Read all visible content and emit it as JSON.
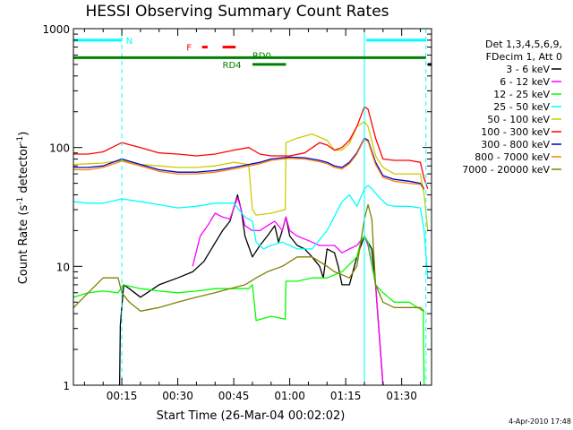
{
  "chart_data": {
    "type": "line",
    "title": "HESSI Observing Summary Count Rates",
    "xlabel": "Start Time (26-Mar-04 00:02:02)",
    "ylabel_parts": [
      "Count Rate (s",
      "-1",
      " detector",
      "-1",
      ")"
    ],
    "y_scale": "log",
    "ylim": [
      1,
      1000
    ],
    "xlim_minutes": [
      2.03,
      98
    ],
    "y_ticks": [
      {
        "value": 1,
        "label": "1"
      },
      {
        "value": 10,
        "label": "10"
      },
      {
        "value": 100,
        "label": "100"
      },
      {
        "value": 1000,
        "label": "1000"
      }
    ],
    "x_ticks": [
      {
        "minute": 15,
        "label": "00:15"
      },
      {
        "minute": 30,
        "label": "00:30"
      },
      {
        "minute": 45,
        "label": "00:45"
      },
      {
        "minute": 60,
        "label": "01:00"
      },
      {
        "minute": 75,
        "label": "01:15"
      },
      {
        "minute": 90,
        "label": "01:30"
      }
    ],
    "legend_header": [
      "Det 1,3,4,5,6,9,",
      "FDecim 1, Att 0"
    ],
    "series": [
      {
        "name": "3 - 6 keV",
        "color": "#000000",
        "points": [
          [
            14.4,
            1
          ],
          [
            14.6,
            3.2
          ],
          [
            15.5,
            7
          ],
          [
            17,
            6.5
          ],
          [
            20,
            5.5
          ],
          [
            25,
            7
          ],
          [
            30,
            8
          ],
          [
            34,
            9
          ],
          [
            37,
            11
          ],
          [
            39,
            14
          ],
          [
            42,
            20
          ],
          [
            44,
            24
          ],
          [
            46,
            40
          ],
          [
            47,
            30
          ],
          [
            48,
            18
          ],
          [
            50,
            12
          ],
          [
            52,
            15
          ],
          [
            54,
            18
          ],
          [
            56,
            22
          ],
          [
            57,
            16
          ],
          [
            58,
            20
          ],
          [
            59,
            26
          ],
          [
            60,
            18
          ],
          [
            62,
            15
          ],
          [
            64,
            14
          ],
          [
            66,
            12
          ],
          [
            68,
            10
          ],
          [
            69,
            8
          ],
          [
            70,
            14
          ],
          [
            72,
            13
          ],
          [
            73,
            10
          ],
          [
            74,
            7
          ],
          [
            76,
            7
          ],
          [
            78,
            12
          ],
          [
            80,
            18
          ],
          [
            82,
            14
          ],
          [
            83,
            7
          ],
          [
            85,
            1
          ]
        ]
      },
      {
        "name": "6 - 12 keV",
        "color": "#ff00ff",
        "points": [
          [
            34,
            10
          ],
          [
            36,
            18
          ],
          [
            38,
            22
          ],
          [
            40,
            28
          ],
          [
            42,
            26
          ],
          [
            44,
            25
          ],
          [
            46,
            38
          ],
          [
            47,
            30
          ],
          [
            48,
            22
          ],
          [
            50,
            20
          ],
          [
            52,
            20
          ],
          [
            54,
            22
          ],
          [
            56,
            24
          ],
          [
            58,
            20
          ],
          [
            59,
            26
          ],
          [
            60,
            20
          ],
          [
            62,
            18
          ],
          [
            64,
            17
          ],
          [
            66,
            16
          ],
          [
            68,
            15
          ],
          [
            70,
            15
          ],
          [
            72,
            15
          ],
          [
            74,
            13
          ],
          [
            76,
            14
          ],
          [
            78,
            15
          ],
          [
            80,
            18
          ],
          [
            81,
            15
          ],
          [
            83,
            7
          ],
          [
            85,
            1
          ]
        ]
      },
      {
        "name": "12 - 25 keV",
        "color": "#00ff00",
        "points": [
          [
            2.1,
            5.5
          ],
          [
            6,
            6
          ],
          [
            10,
            6.2
          ],
          [
            14,
            6
          ],
          [
            15.4,
            7
          ],
          [
            20,
            6.5
          ],
          [
            25,
            6.2
          ],
          [
            30,
            6
          ],
          [
            35,
            6.2
          ],
          [
            40,
            6.5
          ],
          [
            44,
            6.5
          ],
          [
            49,
            6.5
          ],
          [
            50,
            7
          ],
          [
            51,
            3.5
          ],
          [
            55,
            3.8
          ],
          [
            58.8,
            3.6
          ],
          [
            59,
            7.5
          ],
          [
            62,
            7.5
          ],
          [
            66,
            8
          ],
          [
            70,
            8
          ],
          [
            74,
            9
          ],
          [
            78,
            12
          ],
          [
            79,
            16
          ],
          [
            80,
            18
          ],
          [
            81,
            16
          ],
          [
            83,
            7
          ],
          [
            85,
            6
          ],
          [
            88,
            5
          ],
          [
            92,
            5
          ],
          [
            95.8,
            4.2
          ],
          [
            96,
            1
          ]
        ]
      },
      {
        "name": "25 - 50 keV",
        "color": "#00ffff",
        "points": [
          [
            2.1,
            35
          ],
          [
            6,
            34
          ],
          [
            10,
            34
          ],
          [
            15,
            37
          ],
          [
            20,
            35
          ],
          [
            25,
            33
          ],
          [
            30,
            31
          ],
          [
            35,
            32
          ],
          [
            40,
            34
          ],
          [
            45,
            34
          ],
          [
            48,
            26
          ],
          [
            50,
            24
          ],
          [
            51,
            16
          ],
          [
            53,
            14
          ],
          [
            55,
            15
          ],
          [
            58,
            16
          ],
          [
            62,
            14
          ],
          [
            66,
            14
          ],
          [
            70,
            20
          ],
          [
            74,
            35
          ],
          [
            76,
            40
          ],
          [
            78,
            32
          ],
          [
            80,
            45
          ],
          [
            81,
            48
          ],
          [
            82,
            45
          ],
          [
            84,
            38
          ],
          [
            86,
            33
          ],
          [
            88,
            32
          ],
          [
            92,
            32
          ],
          [
            95,
            31
          ],
          [
            96,
            20
          ],
          [
            97,
            8
          ]
        ]
      },
      {
        "name": "50 - 100 keV",
        "color": "#cccc00",
        "points": [
          [
            2.1,
            72
          ],
          [
            6,
            73
          ],
          [
            10,
            74
          ],
          [
            15,
            78
          ],
          [
            20,
            72
          ],
          [
            25,
            70
          ],
          [
            30,
            68
          ],
          [
            35,
            68
          ],
          [
            40,
            70
          ],
          [
            45,
            75
          ],
          [
            49,
            72
          ],
          [
            50,
            30
          ],
          [
            51,
            27
          ],
          [
            55,
            28
          ],
          [
            58.8,
            30
          ],
          [
            59,
            110
          ],
          [
            62,
            120
          ],
          [
            66,
            130
          ],
          [
            70,
            115
          ],
          [
            72,
            95
          ],
          [
            74,
            95
          ],
          [
            76,
            108
          ],
          [
            78,
            150
          ],
          [
            80,
            165
          ],
          [
            81,
            150
          ],
          [
            83,
            85
          ],
          [
            85,
            68
          ],
          [
            88,
            60
          ],
          [
            92,
            60
          ],
          [
            95,
            60
          ],
          [
            96,
            40
          ],
          [
            97,
            20
          ]
        ]
      },
      {
        "name": "100 - 300 keV",
        "color": "#ff0000",
        "points": [
          [
            2.1,
            88
          ],
          [
            6,
            88
          ],
          [
            10,
            92
          ],
          [
            15,
            110
          ],
          [
            20,
            100
          ],
          [
            25,
            90
          ],
          [
            30,
            88
          ],
          [
            35,
            85
          ],
          [
            40,
            88
          ],
          [
            45,
            95
          ],
          [
            49,
            100
          ],
          [
            52,
            88
          ],
          [
            55,
            85
          ],
          [
            58,
            85
          ],
          [
            60,
            85
          ],
          [
            64,
            90
          ],
          [
            68,
            110
          ],
          [
            70,
            105
          ],
          [
            72,
            95
          ],
          [
            74,
            100
          ],
          [
            76,
            115
          ],
          [
            78,
            150
          ],
          [
            80,
            220
          ],
          [
            81,
            210
          ],
          [
            83,
            120
          ],
          [
            85,
            80
          ],
          [
            88,
            78
          ],
          [
            92,
            78
          ],
          [
            95,
            75
          ],
          [
            96,
            55
          ],
          [
            97,
            45
          ]
        ]
      },
      {
        "name": "300 - 800 keV",
        "color": "#0000cc",
        "points": [
          [
            2.1,
            68
          ],
          [
            6,
            68
          ],
          [
            10,
            70
          ],
          [
            15,
            80
          ],
          [
            20,
            72
          ],
          [
            25,
            65
          ],
          [
            30,
            62
          ],
          [
            35,
            62
          ],
          [
            40,
            64
          ],
          [
            45,
            68
          ],
          [
            49,
            72
          ],
          [
            52,
            75
          ],
          [
            55,
            80
          ],
          [
            58,
            82
          ],
          [
            60,
            83
          ],
          [
            64,
            82
          ],
          [
            68,
            78
          ],
          [
            70,
            75
          ],
          [
            72,
            70
          ],
          [
            74,
            68
          ],
          [
            76,
            75
          ],
          [
            78,
            90
          ],
          [
            80,
            120
          ],
          [
            81,
            115
          ],
          [
            83,
            75
          ],
          [
            85,
            58
          ],
          [
            88,
            54
          ],
          [
            92,
            52
          ],
          [
            95,
            50
          ],
          [
            96,
            45
          ]
        ]
      },
      {
        "name": "800 - 7000 keV",
        "color": "#ff8000",
        "points": [
          [
            2.1,
            65
          ],
          [
            6,
            65
          ],
          [
            10,
            68
          ],
          [
            15,
            77
          ],
          [
            20,
            70
          ],
          [
            25,
            63
          ],
          [
            30,
            60
          ],
          [
            35,
            60
          ],
          [
            40,
            62
          ],
          [
            45,
            66
          ],
          [
            49,
            70
          ],
          [
            52,
            73
          ],
          [
            55,
            78
          ],
          [
            58,
            80
          ],
          [
            60,
            81
          ],
          [
            64,
            80
          ],
          [
            68,
            76
          ],
          [
            70,
            73
          ],
          [
            72,
            68
          ],
          [
            74,
            66
          ],
          [
            76,
            73
          ],
          [
            78,
            88
          ],
          [
            80,
            118
          ],
          [
            81,
            112
          ],
          [
            83,
            72
          ],
          [
            85,
            56
          ],
          [
            88,
            52
          ],
          [
            92,
            50
          ],
          [
            95,
            49
          ],
          [
            96,
            44
          ]
        ]
      },
      {
        "name": "7000 - 20000 keV",
        "color": "#808000",
        "points": [
          [
            2.1,
            4.5
          ],
          [
            6,
            6
          ],
          [
            10,
            8
          ],
          [
            14,
            8
          ],
          [
            15,
            6
          ],
          [
            17,
            5
          ],
          [
            20,
            4.2
          ],
          [
            25,
            4.5
          ],
          [
            30,
            5
          ],
          [
            35,
            5.5
          ],
          [
            40,
            6
          ],
          [
            44,
            6.5
          ],
          [
            48,
            7
          ],
          [
            51,
            8
          ],
          [
            54,
            9
          ],
          [
            58,
            10
          ],
          [
            62,
            12
          ],
          [
            66,
            12
          ],
          [
            70,
            10
          ],
          [
            72,
            9
          ],
          [
            74,
            8.5
          ],
          [
            76,
            8
          ],
          [
            78,
            10
          ],
          [
            80,
            25
          ],
          [
            81,
            33
          ],
          [
            82,
            25
          ],
          [
            83,
            7
          ],
          [
            85,
            5
          ],
          [
            88,
            4.5
          ],
          [
            92,
            4.5
          ],
          [
            95,
            4.5
          ],
          [
            96,
            4.2
          ]
        ]
      }
    ],
    "vertical_markers": [
      {
        "minute": 15,
        "color": "#00ffff",
        "style": "dashed"
      },
      {
        "minute": 80,
        "color": "#00ffff",
        "style": "solid"
      },
      {
        "minute": 96.5,
        "color": "#00ffff",
        "style": "dashed"
      }
    ],
    "state_bars": [
      {
        "color": "#00ffff",
        "y": 800,
        "segments": [
          [
            2.03,
            15
          ],
          [
            80.5,
            96.5
          ]
        ]
      },
      {
        "color": "#008000",
        "y": 570,
        "segments": [
          [
            2.03,
            96.5
          ]
        ]
      },
      {
        "color": "#ff0000",
        "y": 700,
        "segments": [
          [
            36.5,
            38
          ],
          [
            42,
            45.5
          ]
        ]
      },
      {
        "color": "#008000",
        "y": 500,
        "segments": [
          [
            50,
            59
          ]
        ]
      },
      {
        "color": "#000000",
        "y": 500,
        "segments": [
          [
            97,
            98
          ]
        ]
      }
    ],
    "bar_labels": [
      {
        "text": "N",
        "color": "#00ffff",
        "minute": 17,
        "y": 800
      },
      {
        "text": "F",
        "color": "#ff0000",
        "minute": 33,
        "y": 700
      },
      {
        "text": "RD0",
        "color": "#008000",
        "minute": 52.5,
        "y": 600
      },
      {
        "text": "RD4",
        "color": "#008000",
        "minute": 44.5,
        "y": 500
      }
    ],
    "footer_date": "4-Apr-2010 17:48"
  }
}
